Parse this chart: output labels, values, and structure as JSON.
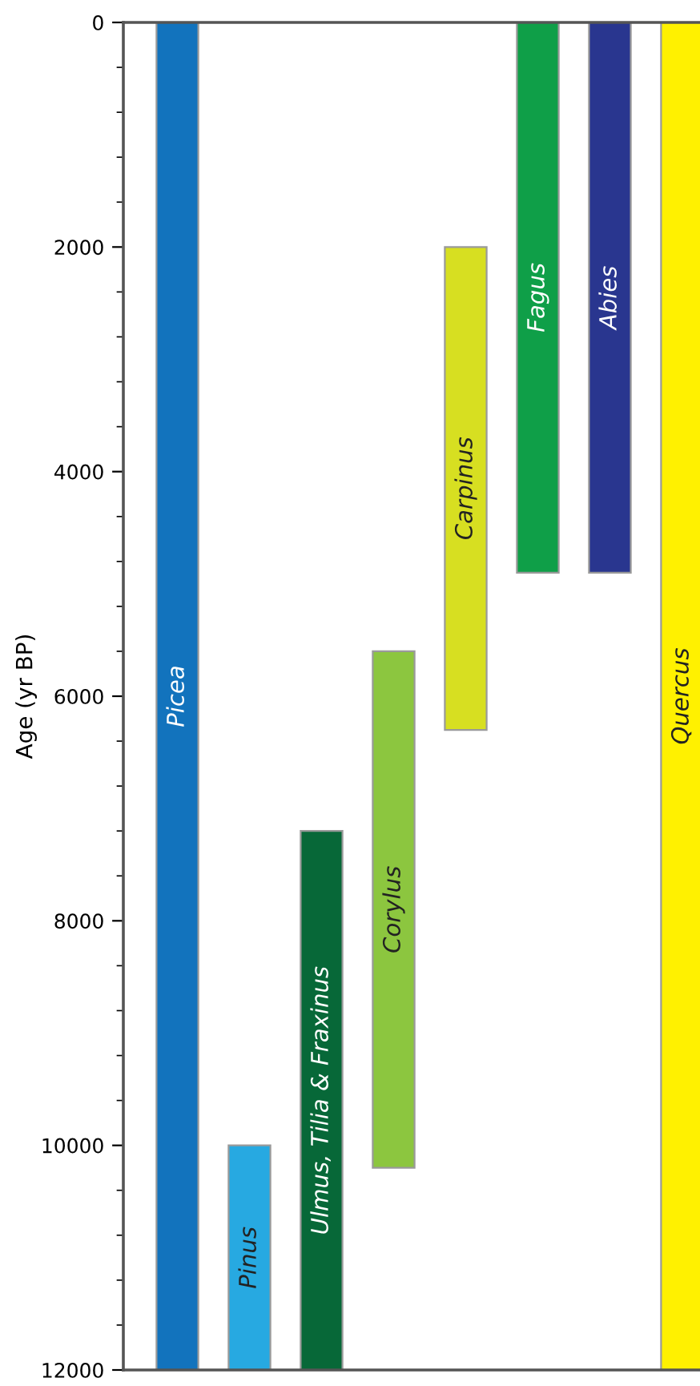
{
  "chart_data": {
    "type": "bar",
    "ylabel": "Age (yr BP)",
    "categories": [
      "Picea",
      "Pinus",
      "Ulmus, Tilia & Fraxinus",
      "Corylus",
      "Carpinus",
      "Fagus",
      "Abies",
      "Quercus"
    ],
    "base": [
      0,
      10000,
      7200,
      5600,
      2000,
      0,
      0,
      0
    ],
    "values": [
      12000,
      2000,
      4800,
      4600,
      4300,
      4900,
      4900,
      12000
    ],
    "colors": [
      "#1273bd",
      "#27a9e1",
      "#076838",
      "#8cc63f",
      "#d7df21",
      "#0f9f48",
      "#29368f",
      "#fff100"
    ],
    "ylim": [
      12000,
      0
    ],
    "yticks": [
      0,
      2000,
      4000,
      6000,
      8000,
      10000,
      12000
    ],
    "grid": false
  }
}
